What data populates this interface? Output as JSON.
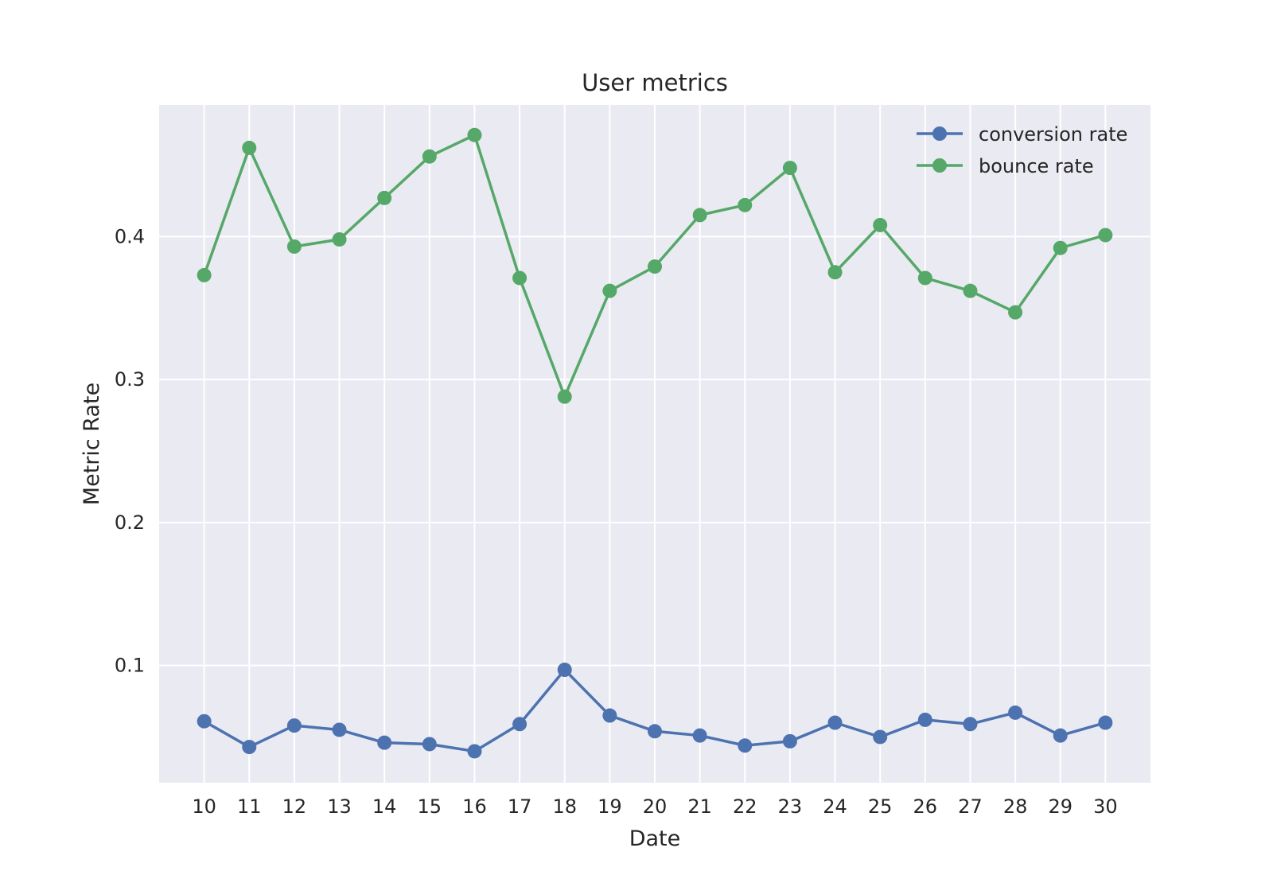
{
  "chart_data": {
    "type": "line",
    "title": "User metrics",
    "xlabel": "Date",
    "ylabel": "Metric Rate",
    "x": [
      10,
      11,
      12,
      13,
      14,
      15,
      16,
      17,
      18,
      19,
      20,
      21,
      22,
      23,
      24,
      25,
      26,
      27,
      28,
      29,
      30
    ],
    "xlim": [
      9,
      31
    ],
    "ylim": [
      0.018,
      0.492
    ],
    "yticks": [
      0.1,
      0.2,
      0.3,
      0.4
    ],
    "ytick_labels": [
      "0.1",
      "0.2",
      "0.3",
      "0.4"
    ],
    "grid": true,
    "legend_position": "top-right",
    "series": [
      {
        "name": "conversion rate",
        "color": "#4c72b0",
        "values": [
          0.061,
          0.043,
          0.058,
          0.055,
          0.046,
          0.045,
          0.04,
          0.059,
          0.097,
          0.065,
          0.054,
          0.051,
          0.044,
          0.047,
          0.06,
          0.05,
          0.062,
          0.059,
          0.067,
          0.051,
          0.06
        ]
      },
      {
        "name": "bounce rate",
        "color": "#55a868",
        "values": [
          0.373,
          0.462,
          0.393,
          0.398,
          0.427,
          0.456,
          0.471,
          0.371,
          0.288,
          0.362,
          0.379,
          0.415,
          0.422,
          0.448,
          0.375,
          0.408,
          0.371,
          0.362,
          0.347,
          0.392,
          0.401
        ]
      }
    ]
  }
}
